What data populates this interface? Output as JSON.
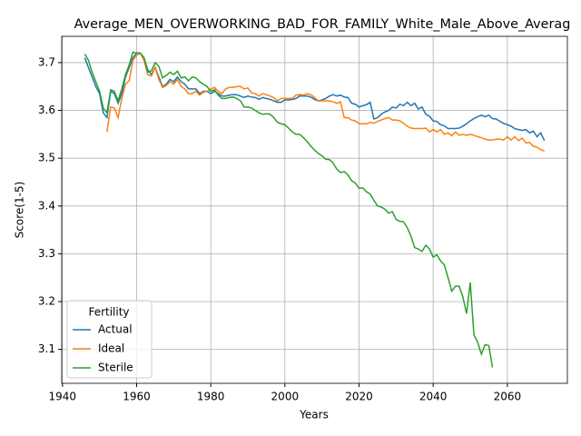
{
  "chart_data": {
    "type": "line",
    "title": "Average_MEN_OVERWORKING_BAD_FOR_FAMILY_White_Male_Above_Averag",
    "xlabel": "Years",
    "ylabel": "Score(1-5)",
    "xlim": [
      1939.8,
      2076.2
    ],
    "ylim": [
      3.029,
      3.755
    ],
    "xticks": [
      1940,
      1960,
      1980,
      2000,
      2020,
      2040,
      2060
    ],
    "yticks": [
      3.1,
      3.2,
      3.3,
      3.4,
      3.5,
      3.6,
      3.7
    ],
    "grid": true,
    "legend_title": "Fertility",
    "legend_position": "lower left",
    "series": [
      {
        "name": "Actual",
        "color": "#1f77b4",
        "x": [
          1946,
          1947,
          1948,
          1949,
          1950,
          1951,
          1952,
          1953,
          1954,
          1955,
          1956,
          1957,
          1958,
          1959,
          1960,
          1961,
          1962,
          1963,
          1964,
          1965,
          1966,
          1967,
          1968,
          1969,
          1970,
          1971,
          1972,
          1973,
          1974,
          1975,
          1976,
          1977,
          1978,
          1979,
          1980,
          1981,
          1982,
          1983,
          1984,
          1985,
          1986,
          1987,
          1988,
          1989,
          1990,
          1991,
          1992,
          1993,
          1994,
          1995,
          1996,
          1997,
          1998,
          1999,
          2000,
          2001,
          2002,
          2003,
          2004,
          2005,
          2006,
          2007,
          2008,
          2009,
          2010,
          2011,
          2012,
          2013,
          2014,
          2015,
          2016,
          2017,
          2018,
          2019,
          2020,
          2021,
          2022,
          2023,
          2024,
          2025,
          2026,
          2027,
          2028,
          2029,
          2030,
          2031,
          2032,
          2033,
          2034,
          2035,
          2036,
          2037,
          2038,
          2039,
          2040,
          2041,
          2042,
          2043,
          2044,
          2045,
          2046,
          2047,
          2048,
          2049,
          2050,
          2051,
          2052,
          2053,
          2054,
          2055,
          2056,
          2057,
          2058,
          2059,
          2060,
          2061,
          2062,
          2063,
          2064,
          2065,
          2066,
          2067,
          2068,
          2069,
          2070
        ],
        "values": [
          3.71,
          3.69,
          3.67,
          3.65,
          3.635,
          3.595,
          3.585,
          3.64,
          3.635,
          3.615,
          3.635,
          3.67,
          3.69,
          3.71,
          3.72,
          3.72,
          3.71,
          3.685,
          3.675,
          3.69,
          3.67,
          3.65,
          3.655,
          3.665,
          3.66,
          3.67,
          3.66,
          3.655,
          3.645,
          3.645,
          3.645,
          3.635,
          3.64,
          3.64,
          3.635,
          3.64,
          3.635,
          3.63,
          3.63,
          3.632,
          3.633,
          3.633,
          3.63,
          3.627,
          3.63,
          3.628,
          3.627,
          3.623,
          3.627,
          3.625,
          3.623,
          3.62,
          3.617,
          3.617,
          3.622,
          3.622,
          3.623,
          3.625,
          3.63,
          3.63,
          3.63,
          3.628,
          3.623,
          3.62,
          3.622,
          3.625,
          3.63,
          3.633,
          3.63,
          3.632,
          3.628,
          3.627,
          3.615,
          3.613,
          3.607,
          3.61,
          3.612,
          3.617,
          3.582,
          3.585,
          3.592,
          3.597,
          3.6,
          3.607,
          3.605,
          3.613,
          3.61,
          3.617,
          3.61,
          3.615,
          3.603,
          3.607,
          3.592,
          3.588,
          3.578,
          3.577,
          3.57,
          3.568,
          3.562,
          3.562,
          3.562,
          3.563,
          3.567,
          3.572,
          3.578,
          3.583,
          3.587,
          3.59,
          3.587,
          3.59,
          3.583,
          3.582,
          3.577,
          3.573,
          3.57,
          3.567,
          3.562,
          3.56,
          3.558,
          3.56,
          3.553,
          3.557,
          3.545,
          3.553,
          3.537
        ]
      },
      {
        "name": "Ideal",
        "color": "#ff7f0e",
        "x": [
          1952,
          1953,
          1954,
          1955,
          1956,
          1957,
          1958,
          1959,
          1960,
          1961,
          1962,
          1963,
          1964,
          1965,
          1966,
          1967,
          1968,
          1969,
          1970,
          1971,
          1972,
          1973,
          1974,
          1975,
          1976,
          1977,
          1978,
          1979,
          1980,
          1981,
          1982,
          1983,
          1984,
          1985,
          1986,
          1987,
          1988,
          1989,
          1990,
          1991,
          1992,
          1993,
          1994,
          1995,
          1996,
          1997,
          1998,
          1999,
          2000,
          2001,
          2002,
          2003,
          2004,
          2005,
          2006,
          2007,
          2008,
          2009,
          2010,
          2011,
          2012,
          2013,
          2014,
          2015,
          2016,
          2017,
          2018,
          2019,
          2020,
          2021,
          2022,
          2023,
          2024,
          2025,
          2026,
          2027,
          2028,
          2029,
          2030,
          2031,
          2032,
          2033,
          2034,
          2035,
          2036,
          2037,
          2038,
          2039,
          2040,
          2041,
          2042,
          2043,
          2044,
          2045,
          2046,
          2047,
          2048,
          2049,
          2050,
          2051,
          2052,
          2053,
          2054,
          2055,
          2056,
          2057,
          2058,
          2059,
          2060,
          2061,
          2062,
          2063,
          2064,
          2065,
          2066,
          2067,
          2068,
          2069,
          2070
        ],
        "values": [
          3.555,
          3.607,
          3.605,
          3.585,
          3.625,
          3.655,
          3.662,
          3.705,
          3.715,
          3.72,
          3.705,
          3.675,
          3.672,
          3.69,
          3.665,
          3.648,
          3.652,
          3.66,
          3.655,
          3.665,
          3.65,
          3.645,
          3.635,
          3.635,
          3.64,
          3.632,
          3.638,
          3.64,
          3.645,
          3.648,
          3.64,
          3.635,
          3.645,
          3.648,
          3.648,
          3.65,
          3.65,
          3.645,
          3.647,
          3.637,
          3.635,
          3.63,
          3.635,
          3.633,
          3.63,
          3.627,
          3.62,
          3.625,
          3.625,
          3.625,
          3.625,
          3.632,
          3.633,
          3.632,
          3.635,
          3.633,
          3.627,
          3.62,
          3.62,
          3.62,
          3.62,
          3.618,
          3.615,
          3.618,
          3.585,
          3.585,
          3.58,
          3.578,
          3.572,
          3.572,
          3.572,
          3.575,
          3.573,
          3.577,
          3.58,
          3.583,
          3.585,
          3.58,
          3.58,
          3.578,
          3.573,
          3.567,
          3.563,
          3.562,
          3.562,
          3.562,
          3.563,
          3.555,
          3.56,
          3.555,
          3.56,
          3.55,
          3.553,
          3.547,
          3.555,
          3.548,
          3.55,
          3.548,
          3.55,
          3.548,
          3.545,
          3.543,
          3.54,
          3.538,
          3.538,
          3.54,
          3.54,
          3.538,
          3.545,
          3.538,
          3.545,
          3.537,
          3.542,
          3.532,
          3.533,
          3.525,
          3.523,
          3.518,
          3.515
        ]
      },
      {
        "name": "Sterile",
        "color": "#2ca02c",
        "x": [
          1946,
          1947,
          1948,
          1949,
          1950,
          1951,
          1952,
          1953,
          1954,
          1955,
          1956,
          1957,
          1958,
          1959,
          1960,
          1961,
          1962,
          1963,
          1964,
          1965,
          1966,
          1967,
          1968,
          1969,
          1970,
          1971,
          1972,
          1973,
          1974,
          1975,
          1976,
          1977,
          1978,
          1979,
          1980,
          1981,
          1982,
          1983,
          1984,
          1985,
          1986,
          1987,
          1988,
          1989,
          1990,
          1991,
          1992,
          1993,
          1994,
          1995,
          1996,
          1997,
          1998,
          1999,
          2000,
          2001,
          2002,
          2003,
          2004,
          2005,
          2006,
          2007,
          2008,
          2009,
          2010,
          2011,
          2012,
          2013,
          2014,
          2015,
          2016,
          2017,
          2018,
          2019,
          2020,
          2021,
          2022,
          2023,
          2024,
          2025,
          2026,
          2027,
          2028,
          2029,
          2030,
          2031,
          2032,
          2033,
          2034,
          2035,
          2036,
          2037,
          2038,
          2039,
          2040,
          2041,
          2042,
          2043,
          2044,
          2045,
          2046,
          2047,
          2048,
          2049,
          2050,
          2051,
          2052,
          2053,
          2054,
          2055,
          2056
        ],
        "values": [
          3.718,
          3.705,
          3.68,
          3.66,
          3.64,
          3.605,
          3.595,
          3.643,
          3.64,
          3.62,
          3.645,
          3.675,
          3.695,
          3.722,
          3.72,
          3.72,
          3.71,
          3.68,
          3.683,
          3.7,
          3.692,
          3.668,
          3.673,
          3.68,
          3.675,
          3.682,
          3.668,
          3.67,
          3.662,
          3.67,
          3.668,
          3.66,
          3.655,
          3.65,
          3.64,
          3.643,
          3.632,
          3.625,
          3.625,
          3.627,
          3.628,
          3.625,
          3.62,
          3.607,
          3.607,
          3.605,
          3.6,
          3.595,
          3.592,
          3.593,
          3.592,
          3.585,
          3.575,
          3.572,
          3.57,
          3.563,
          3.555,
          3.55,
          3.55,
          3.543,
          3.535,
          3.525,
          3.517,
          3.51,
          3.505,
          3.498,
          3.497,
          3.49,
          3.477,
          3.47,
          3.472,
          3.465,
          3.453,
          3.448,
          3.437,
          3.438,
          3.43,
          3.425,
          3.412,
          3.4,
          3.398,
          3.393,
          3.385,
          3.388,
          3.372,
          3.368,
          3.367,
          3.355,
          3.337,
          3.313,
          3.31,
          3.305,
          3.318,
          3.31,
          3.293,
          3.298,
          3.285,
          3.277,
          3.25,
          3.222,
          3.232,
          3.232,
          3.21,
          3.175,
          3.24,
          3.13,
          3.115,
          3.09,
          3.11,
          3.108,
          3.062
        ]
      }
    ]
  }
}
